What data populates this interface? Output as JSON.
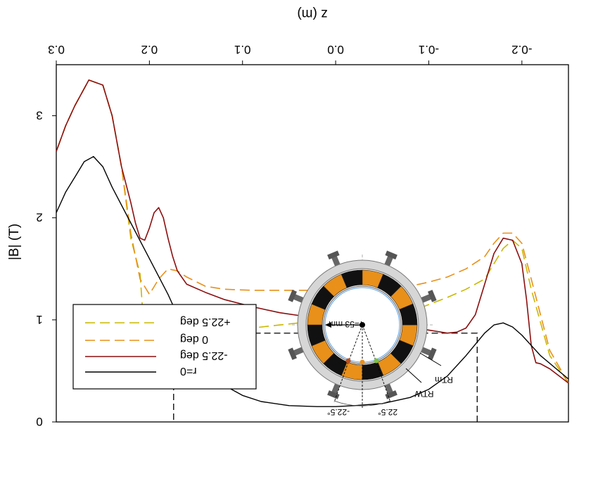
{
  "chart_data": {
    "type": "line",
    "orientation_note": "",
    "xlabel": "z (m)",
    "ylabel": "|B| (T)",
    "xlim": [
      -0.25,
      0.3
    ],
    "ylim": [
      0,
      3.5
    ],
    "y_inverted": true,
    "xticks": [
      "-0.2",
      "-0.1",
      "0.0",
      "0.1",
      "0.2",
      "0.3"
    ],
    "xtick_values": [
      -0.2,
      -0.1,
      0.0,
      0.1,
      0.2,
      0.3
    ],
    "yticks": [
      "0",
      "1",
      "2",
      "3"
    ],
    "ytick_values": [
      0,
      1,
      2,
      3
    ],
    "legend_position": "bottom-left",
    "box": {
      "x_range": [
        -0.152,
        0.174
      ],
      "y_value": 0.87,
      "style": "dashed"
    },
    "series": [
      {
        "name": "+22.5 deg",
        "color": "#c9b800",
        "dash": "dashed",
        "x": [
          -0.25,
          -0.23,
          -0.21,
          -0.2,
          -0.19,
          -0.18,
          -0.17,
          -0.16,
          -0.14,
          -0.12,
          -0.1,
          -0.08,
          -0.05,
          -0.02,
          0.0,
          0.03,
          0.06,
          0.09,
          0.12,
          0.14,
          0.16,
          0.17,
          0.18,
          0.185,
          0.19,
          0.195,
          0.2,
          0.205,
          0.21,
          0.22,
          0.23,
          0.24,
          0.25,
          0.265,
          0.28,
          0.29,
          0.3
        ],
        "y": [
          0.38,
          0.65,
          1.3,
          1.7,
          1.78,
          1.7,
          1.55,
          1.4,
          1.3,
          1.22,
          1.15,
          1.08,
          1.03,
          1.01,
          1.0,
          0.98,
          0.95,
          0.92,
          0.88,
          0.87,
          0.9,
          0.97,
          1.05,
          1.0,
          0.8,
          0.55,
          0.45,
          0.8,
          1.45,
          1.8,
          2.5,
          3.0,
          3.3,
          3.35,
          3.1,
          2.9,
          2.65
        ]
      },
      {
        "name": "0 deg",
        "color": "#e8901a",
        "dash": "dashed",
        "x": [
          -0.25,
          -0.23,
          -0.21,
          -0.2,
          -0.19,
          -0.18,
          -0.17,
          -0.16,
          -0.14,
          -0.12,
          -0.1,
          -0.08,
          -0.05,
          -0.02,
          0.0,
          0.03,
          0.06,
          0.09,
          0.12,
          0.14,
          0.16,
          0.17,
          0.18,
          0.19,
          0.2,
          0.21,
          0.22,
          0.23,
          0.24,
          0.25,
          0.265,
          0.28,
          0.29,
          0.3
        ],
        "y": [
          0.38,
          0.7,
          1.4,
          1.75,
          1.85,
          1.85,
          1.75,
          1.62,
          1.5,
          1.42,
          1.37,
          1.33,
          1.3,
          1.29,
          1.29,
          1.29,
          1.29,
          1.29,
          1.3,
          1.33,
          1.42,
          1.48,
          1.5,
          1.4,
          1.25,
          1.4,
          1.85,
          2.5,
          3.0,
          3.3,
          3.35,
          3.1,
          2.9,
          2.65
        ]
      },
      {
        "name": "-22.5 deg",
        "color": "#8b0f0f",
        "dash": "solid",
        "x": [
          -0.25,
          -0.23,
          -0.22,
          -0.215,
          -0.21,
          -0.205,
          -0.2,
          -0.19,
          -0.18,
          -0.17,
          -0.16,
          -0.15,
          -0.14,
          -0.13,
          -0.12,
          -0.1,
          -0.08,
          -0.05,
          -0.02,
          0.0,
          0.03,
          0.06,
          0.09,
          0.12,
          0.14,
          0.16,
          0.17,
          0.175,
          0.18,
          0.185,
          0.19,
          0.195,
          0.2,
          0.205,
          0.21,
          0.215,
          0.22,
          0.23,
          0.24,
          0.25,
          0.265,
          0.28,
          0.29,
          0.3
        ],
        "y": [
          0.38,
          0.52,
          0.57,
          0.58,
          0.75,
          1.2,
          1.55,
          1.78,
          1.8,
          1.65,
          1.35,
          1.05,
          0.92,
          0.88,
          0.87,
          0.9,
          0.93,
          0.96,
          0.98,
          1.0,
          1.03,
          1.07,
          1.13,
          1.2,
          1.27,
          1.35,
          1.48,
          1.62,
          1.8,
          2.0,
          2.1,
          2.05,
          1.9,
          1.78,
          1.8,
          1.95,
          2.15,
          2.5,
          3.0,
          3.3,
          3.35,
          3.1,
          2.9,
          2.65
        ]
      },
      {
        "name": "r=0",
        "color": "#000000",
        "dash": "solid",
        "x": [
          -0.25,
          -0.22,
          -0.2,
          -0.19,
          -0.18,
          -0.17,
          -0.16,
          -0.15,
          -0.14,
          -0.12,
          -0.1,
          -0.08,
          -0.05,
          -0.02,
          0.0,
          0.02,
          0.05,
          0.08,
          0.1,
          0.12,
          0.14,
          0.16,
          0.18,
          0.2,
          0.22,
          0.24,
          0.25,
          0.26,
          0.27,
          0.28,
          0.29,
          0.3
        ],
        "y": [
          0.42,
          0.65,
          0.85,
          0.93,
          0.97,
          0.95,
          0.87,
          0.76,
          0.65,
          0.45,
          0.32,
          0.24,
          0.18,
          0.16,
          0.15,
          0.15,
          0.16,
          0.2,
          0.26,
          0.36,
          0.55,
          0.85,
          1.25,
          1.6,
          1.95,
          2.3,
          2.5,
          2.6,
          2.55,
          2.4,
          2.25,
          2.05
        ]
      }
    ]
  },
  "inset": {
    "radius_label": "r=53 mm",
    "label_rtm": "RTm",
    "label_rtw": "RTW",
    "angle_left": "-22.5°",
    "angle_right": "22.5°"
  }
}
